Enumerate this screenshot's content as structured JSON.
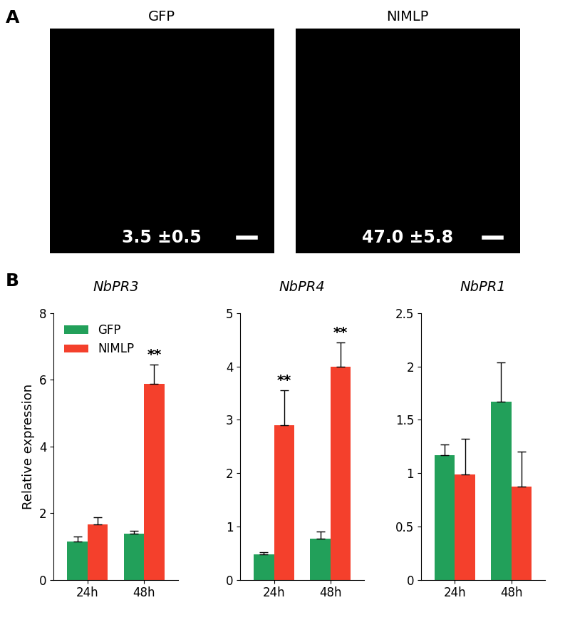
{
  "panel_labels": [
    "A",
    "B"
  ],
  "images": [
    {
      "title": "GFP",
      "annotation": "3.5 ±0.5"
    },
    {
      "title": "NIMLP",
      "annotation": "47.0 ±5.8"
    }
  ],
  "chart_data": [
    {
      "type": "bar",
      "title": "NbPR3",
      "y_label": "Relative expression",
      "categories": [
        "24h",
        "48h"
      ],
      "series": [
        {
          "name": "GFP",
          "color": "#22a05a",
          "values": [
            1.15,
            1.38
          ],
          "errors": [
            0.15,
            0.08
          ]
        },
        {
          "name": "NIMLP",
          "color": "#f4402c",
          "values": [
            1.65,
            5.88
          ],
          "errors": [
            0.22,
            0.58
          ]
        }
      ],
      "annotations": [
        {
          "series": "NIMLP",
          "category": "48h",
          "text": "**"
        }
      ],
      "ylim": [
        0,
        8
      ],
      "yticks": [
        0,
        2,
        4,
        6,
        8
      ],
      "legend": "upper left"
    },
    {
      "type": "bar",
      "title": "NbPR4",
      "categories": [
        "24h",
        "48h"
      ],
      "series": [
        {
          "name": "GFP",
          "color": "#22a05a",
          "values": [
            0.47,
            0.77
          ],
          "errors": [
            0.05,
            0.13
          ]
        },
        {
          "name": "NIMLP",
          "color": "#f4402c",
          "values": [
            2.9,
            4.0
          ],
          "errors": [
            0.65,
            0.45
          ]
        }
      ],
      "annotations": [
        {
          "series": "NIMLP",
          "category": "24h",
          "text": "**"
        },
        {
          "series": "NIMLP",
          "category": "48h",
          "text": "**"
        }
      ],
      "ylim": [
        0,
        5
      ],
      "yticks": [
        0,
        1,
        2,
        3,
        4,
        5
      ]
    },
    {
      "type": "bar",
      "title": "NbPR1",
      "categories": [
        "24h",
        "48h"
      ],
      "series": [
        {
          "name": "GFP",
          "color": "#22a05a",
          "values": [
            1.17,
            1.67
          ],
          "errors": [
            0.1,
            0.37
          ]
        },
        {
          "name": "NIMLP",
          "color": "#f4402c",
          "values": [
            0.99,
            0.87
          ],
          "errors": [
            0.33,
            0.33
          ]
        }
      ],
      "annotations": [],
      "ylim": [
        0,
        2.5
      ],
      "yticks": [
        0,
        0.5,
        1,
        1.5,
        2,
        2.5
      ]
    }
  ]
}
